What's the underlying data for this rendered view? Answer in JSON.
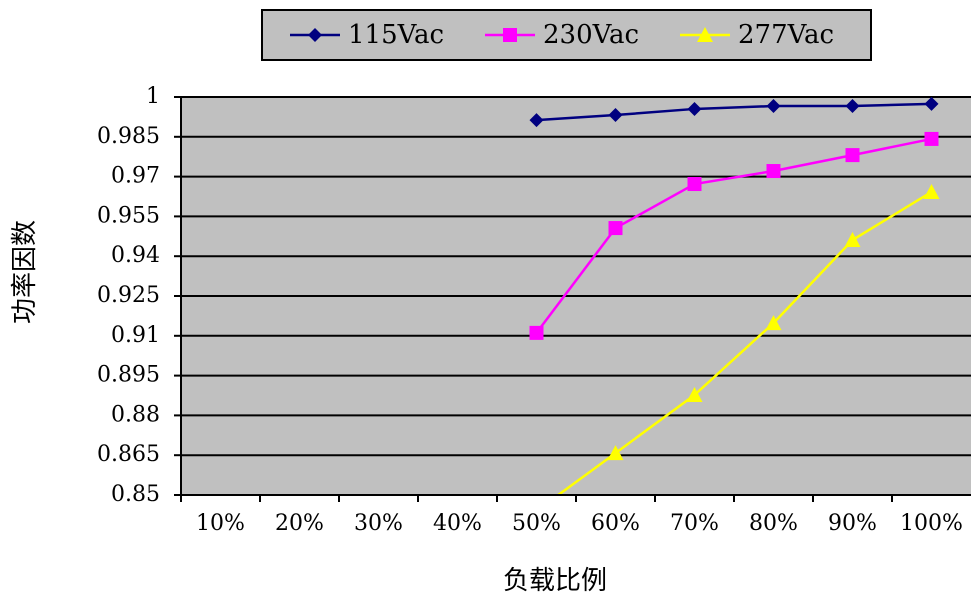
{
  "chart_data": {
    "type": "line",
    "categories": [
      "10%",
      "20%",
      "30%",
      "40%",
      "50%",
      "60%",
      "70%",
      "80%",
      "90%",
      "100%"
    ],
    "series": [
      {
        "name": "115Vac",
        "color": "#000080",
        "marker": "diamond",
        "values": [
          null,
          null,
          null,
          null,
          0.9913,
          0.9932,
          0.9955,
          0.9966,
          0.9966,
          0.9974
        ]
      },
      {
        "name": "230Vac",
        "color": "#ff00ff",
        "marker": "square",
        "values": [
          null,
          null,
          null,
          null,
          0.9111,
          0.9506,
          0.9672,
          0.9721,
          0.9781,
          0.9842
        ]
      },
      {
        "name": "277Vac",
        "color": "#ffff00",
        "marker": "triangle",
        "values": [
          null,
          null,
          null,
          null,
          0.844,
          0.8658,
          0.8877,
          0.9148,
          0.9461,
          0.9642
        ]
      }
    ],
    "ylim": [
      0.85,
      1
    ],
    "yticks": [
      0.85,
      0.865,
      0.88,
      0.895,
      0.91,
      0.925,
      0.94,
      0.955,
      0.97,
      0.985,
      1
    ],
    "grid": true,
    "xlabel": "负载比例",
    "ylabel": "功率因数",
    "legend": "top"
  }
}
